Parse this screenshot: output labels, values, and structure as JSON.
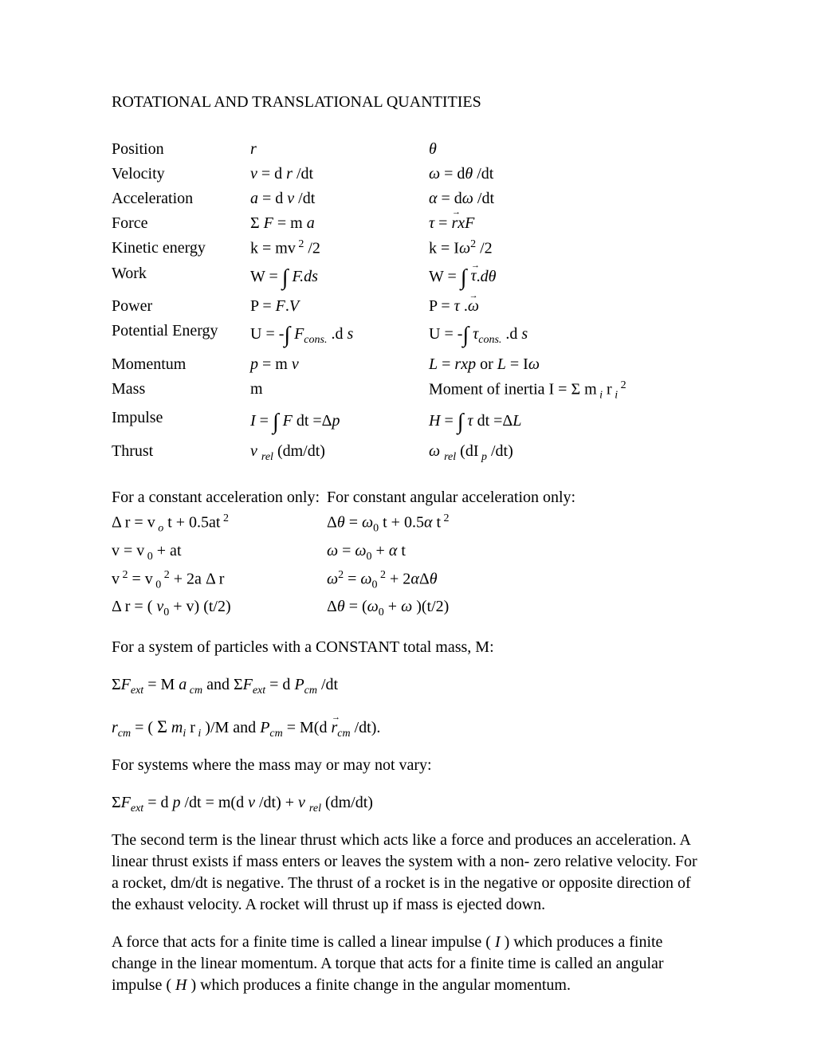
{
  "title": "ROTATIONAL AND TRANSLATIONAL QUANTITIES",
  "rows": [
    {
      "label": "Position",
      "lin": "<span class='ital'>r</span>",
      "rot": "<span class='ital'>θ</span>"
    },
    {
      "label": "Velocity",
      "lin": "<span class='ital'>v</span> = d <span class='ital'>r</span> /dt",
      "rot": "<span class='ital'>ω</span>  = d<span class='ital'>θ</span> /dt"
    },
    {
      "label": "Acceleration",
      "lin": "<span class='ital'>a</span> = d <span class='ital'>v</span> /dt",
      "rot": "<span class='ital'>α</span> = d<span class='ital'>ω</span> /dt"
    },
    {
      "label": "Force",
      "lin": "Σ  <span class='ital'>F</span> = m <span class='ital'>a</span>",
      "rot": "<span class='ital'>τ</span> = <span class='vec ital'>r</span><span class='ital'>xF</span>"
    },
    {
      "label": "Kinetic energy",
      "lin": "k = mv<span class='sup'> 2</span> /2",
      "rot": "k = I<span class='ital'>ω</span><span class='sup'>2</span> /2"
    },
    {
      "label": "Work",
      "lin": "W = <span class='int'>∫</span> <span class='ital'>F.ds</span>",
      "rot": "W = <span class='int'>∫</span> <span class='vec ital'>τ</span>.<span class='ital'>dθ</span>"
    },
    {
      "label": "Power",
      "lin": "P =  <span class='ital'>F</span>.<span class='ital'>V</span>",
      "rot": "P = <span class='ital'>τ</span> .<span class='vec ital'>ω</span>"
    },
    {
      "label": "Potential Energy",
      "lin": "U = -<span class='int'>∫</span> <span class='ital'>F</span><span class='sub'>cons.</span> .d <span class='ital'>s</span>",
      "rot": "U = -<span class='int'>∫</span> <span class='ital'>τ</span><span class='sub'>cons.</span> .d <span class='ital'>s</span>"
    },
    {
      "label": "Momentum",
      "lin": "<span class='ital'>p</span> = m <span class='ital'>v</span>",
      "rot": "<span class='ital'>L</span> = <span class='ital'>rxp</span>  or  <span class='ital'>L</span> = I<span class='ital'>ω</span>"
    },
    {
      "label": "Mass",
      "lin": "m",
      "rot": "Moment of inertia I = Σ m<span class='sub'> i</span> r<span class='sub'> i</span><span class='sup'> 2</span>"
    },
    {
      "label": "Impulse",
      "lin": "<span class='ital'>I</span> = <span class='int'>∫</span> <span class='ital'>F</span> dt =Δ<span class='ital'>p</span>",
      "rot": "<span class='ital'>H</span> = <span class='int'>∫</span> <span class='ital'>τ</span>  dt =Δ<span class='ital'>L</span>"
    },
    {
      "label": "Thrust",
      "lin": "<span class='ital'>v</span> <span class='sub'> rel</span> (dm/dt)",
      "rot": "<span class='ital'>ω</span> <span class='sub'> rel</span> (dI<span class='sub'> p</span> /dt)"
    }
  ],
  "kin_header_lin": "For a constant acceleration only:",
  "kin_header_rot": "For constant angular acceleration only:",
  "kin_rows": [
    {
      "lin": "Δ r = v<span class='sub'> o</span> t + 0.5at<span class='sup'> 2</span>",
      "rot": "Δ<span class='ital'>θ</span>  = <span class='ital'>ω</span><span class='subn'>0</span> t + 0.5<span class='ital'>α</span> t<span class='sup'> 2</span>"
    },
    {
      "lin": "v = v<span class='subn'> 0</span>   + at",
      "rot": "<span class='ital'>ω</span>  = <span class='ital'>ω</span><span class='subn'>0</span> + <span class='ital'>α</span> t"
    },
    {
      "lin": "v<span class='sup'> 2</span> = v<span class='subn'> 0</span><span class='sup'> 2</span>  + 2a Δ r",
      "rot": "<span class='ital'>ω</span><span class='sup'>2</span> = <span class='ital'>ω</span><span class='subn'>0</span><span class='sup'> 2</span>    +  2<span class='ital'>α</span>Δ<span class='ital'>θ</span>"
    },
    {
      "lin": "Δ r = ( <span class='ital'>v</span><span class='subn'>0</span>  + v)  (t/2)",
      "rot": "Δ<span class='ital'>θ</span> = (<span class='ital'>ω</span><span class='subn'>0</span> + <span class='ital'>ω</span> )(t/2)"
    }
  ],
  "system_const": "For a system of particles with a CONSTANT  total mass, M:",
  "eq_a": "Σ<span class='ital'>F</span><span class='sub'>ext</span>    = M <span class='ital'>a</span><span class='sub'> cm</span>  and  Σ<span class='ital'>F</span><span class='sub'>ext</span>  = d <span class='ital'>P</span><span class='sub'>cm</span> /dt",
  "eq_b": "<span class='ital'>r</span><span class='sub'>cm</span> = ( <span class='sigma'>Σ</span> <span class='ital'>m</span><span class='sub'>i</span> r<span class='sub'> i</span> )/M  and  <span class='ital'>P</span><span class='sub'>cm</span>  = M(d <span class='vec ital'>r</span><span class='sub'>cm</span> /dt).",
  "system_var": "For systems where the mass may or may not vary:",
  "eq_c": "Σ<span class='ital'>F</span><span class='sub'>ext</span> = d <span class='ital'>p</span> /dt = m(d <span class='ital'>v</span> /dt)  +   <span class='ital'>v</span> <span class='sub'> rel</span> (dm/dt)",
  "para_thrust": "The second term is the linear thrust which acts like a force and produces an acceleration. A linear thrust exists if mass enters or leaves the system with a non- zero relative velocity.  For a rocket, dm/dt is negative.  The thrust of a rocket is in the negative or opposite direction of the exhaust velocity.  A rocket will thrust up if mass is ejected down.",
  "para_impulse": "A force that acts for a finite time is called a linear impulse ( <span class='ital'>I</span> ) which produces a finite change in the linear momentum.  A torque that acts for a finite time is called an angular impulse ( <span class='ital'>H</span> ) which produces a finite change in the angular momentum."
}
